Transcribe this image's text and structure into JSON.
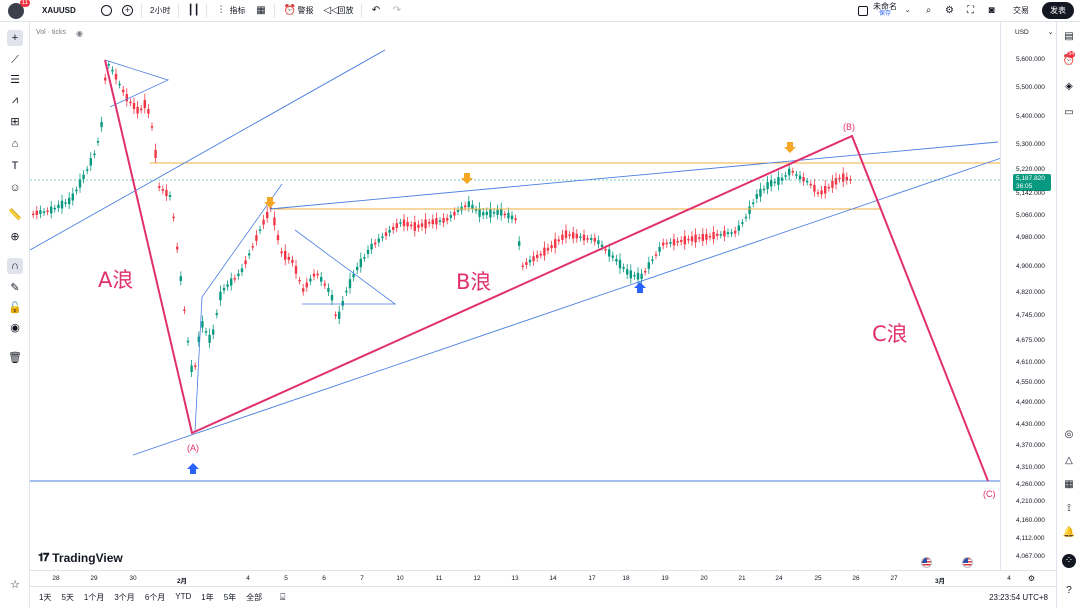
{
  "toolbar": {
    "avatar_badge": "11",
    "symbol": "XAUUSD",
    "interval": "2小时",
    "indicators": "指标",
    "alerts": "警报",
    "replay": "回放",
    "layout_name": "未命名",
    "layout_status": "保存",
    "trade": "交易",
    "publish": "发表"
  },
  "chart": {
    "volume_label": "Vol · ticks",
    "currency": "USD",
    "price_ticks": [
      "5,600.000",
      "5,500.000",
      "5,400.000",
      "5,300.000",
      "5,220.000",
      "5,142.000",
      "5,060.000",
      "4,980.000",
      "4,900.000",
      "4,820.000",
      "4,745.000",
      "4,675.000",
      "4,610.000",
      "4,550.000",
      "4,490.000",
      "4,430.000",
      "4,370.000",
      "4,310.000",
      "4,260.000",
      "4,210.000",
      "4,160.000",
      "4,112.000",
      "4,067.000"
    ],
    "last_price": "5,187.820",
    "countdown": "36:05",
    "time_ticks": [
      "28",
      "29",
      "30",
      "2月",
      "4",
      "5",
      "6",
      "7",
      "10",
      "11",
      "12",
      "13",
      "14",
      "17",
      "18",
      "19",
      "20",
      "21",
      "24",
      "25",
      "26",
      "27",
      "3月",
      "4"
    ],
    "waves": {
      "a_wave": "A浪",
      "b_wave": "B浪",
      "c_wave": "C浪",
      "point_a": "(A)",
      "point_b": "(B)",
      "point_c": "(C)"
    },
    "logo_text": "TradingView",
    "colors": {
      "up": "#089981",
      "down": "#f23645",
      "wave": "#e0306e",
      "trendline": "#4a7ee0",
      "level": "#f0b03c"
    }
  },
  "ranges": [
    "1天",
    "5天",
    "1个月",
    "3个月",
    "6个月",
    "YTD",
    "1年",
    "5年",
    "全部"
  ],
  "clock": "23:23:54 UTC+8",
  "right_badge": "54"
}
